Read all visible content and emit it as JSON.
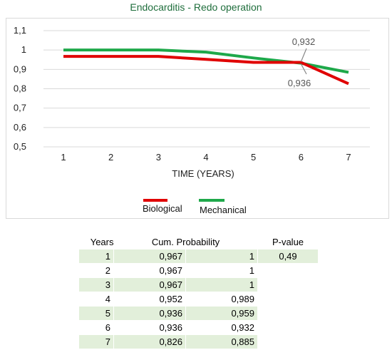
{
  "chart_data": {
    "type": "line",
    "title": "Endocarditis - Redo operation",
    "xlabel": "TIME (YEARS)",
    "ylabel": "",
    "x": [
      1,
      2,
      3,
      4,
      5,
      6,
      7
    ],
    "ylim": [
      0.5,
      1.1
    ],
    "yticks": [
      "0,5",
      "0,6",
      "0,7",
      "0,8",
      "0,9",
      "1",
      "1,1"
    ],
    "grid": "horizontal",
    "legend": "bottom",
    "series": [
      {
        "name": "Biological",
        "color": "#e00000",
        "values": [
          0.967,
          0.967,
          0.967,
          0.952,
          0.936,
          0.936,
          0.826
        ]
      },
      {
        "name": "Mechanical",
        "color": "#1ea84a",
        "values": [
          1,
          1,
          1,
          0.989,
          0.959,
          0.932,
          0.885
        ]
      }
    ],
    "annotations": [
      {
        "text": "0,932",
        "x": 6,
        "series": "Mechanical"
      },
      {
        "text": "0,936",
        "x": 6,
        "series": "Biological"
      }
    ]
  },
  "table": {
    "headers": {
      "years": "Years",
      "cum": "Cum. Probability",
      "p": "P-value"
    },
    "rows": [
      {
        "year": "1",
        "bio": "0,967",
        "mech": "1",
        "p": "0,49"
      },
      {
        "year": "2",
        "bio": "0,967",
        "mech": "1",
        "p": ""
      },
      {
        "year": "3",
        "bio": "0,967",
        "mech": "1",
        "p": ""
      },
      {
        "year": "4",
        "bio": "0,952",
        "mech": "0,989",
        "p": ""
      },
      {
        "year": "5",
        "bio": "0,936",
        "mech": "0,959",
        "p": ""
      },
      {
        "year": "6",
        "bio": "0,936",
        "mech": "0,932",
        "p": ""
      },
      {
        "year": "7",
        "bio": "0,826",
        "mech": "0,885",
        "p": ""
      }
    ]
  }
}
